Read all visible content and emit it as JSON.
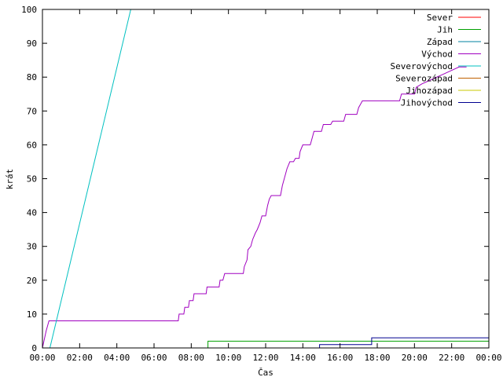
{
  "chart_data": {
    "type": "line",
    "title": "",
    "xlabel": "Čas",
    "ylabel": "krát",
    "xlim": [
      0,
      24
    ],
    "ylim": [
      0,
      100
    ],
    "x_unit": "hours",
    "grid": false,
    "legend_position": "top-right",
    "x_ticks": [
      "00:00",
      "02:00",
      "04:00",
      "06:00",
      "08:00",
      "10:00",
      "12:00",
      "14:00",
      "16:00",
      "18:00",
      "20:00",
      "22:00",
      "00:00"
    ],
    "y_ticks": [
      0,
      10,
      20,
      30,
      40,
      50,
      60,
      70,
      80,
      90,
      100
    ],
    "series": [
      {
        "name": "Sever",
        "color": "#ff0000",
        "step": true,
        "points": []
      },
      {
        "name": "Jih",
        "color": "#00a000",
        "step": true,
        "points": [
          [
            0,
            0
          ],
          [
            8.9,
            0
          ],
          [
            8.9,
            2
          ],
          [
            24,
            2
          ]
        ]
      },
      {
        "name": "Západ",
        "color": "#0080a0",
        "step": true,
        "points": []
      },
      {
        "name": "Východ",
        "color": "#a000c0",
        "step": false,
        "points": [
          [
            0.0,
            0
          ],
          [
            0.2,
            5
          ],
          [
            0.35,
            8
          ],
          [
            7.3,
            8
          ],
          [
            7.35,
            10
          ],
          [
            7.6,
            10
          ],
          [
            7.65,
            12
          ],
          [
            7.85,
            12
          ],
          [
            7.9,
            14
          ],
          [
            8.1,
            14
          ],
          [
            8.15,
            16
          ],
          [
            8.8,
            16
          ],
          [
            8.85,
            18
          ],
          [
            9.5,
            18
          ],
          [
            9.55,
            20
          ],
          [
            9.7,
            20
          ],
          [
            9.8,
            22
          ],
          [
            10.8,
            22
          ],
          [
            10.85,
            24
          ],
          [
            11.0,
            26
          ],
          [
            11.05,
            29
          ],
          [
            11.2,
            30
          ],
          [
            11.3,
            32
          ],
          [
            11.45,
            34
          ],
          [
            11.55,
            35
          ],
          [
            11.7,
            37
          ],
          [
            11.8,
            39
          ],
          [
            12.0,
            39
          ],
          [
            12.1,
            42
          ],
          [
            12.2,
            44
          ],
          [
            12.3,
            45
          ],
          [
            12.8,
            45
          ],
          [
            12.9,
            48
          ],
          [
            13.0,
            50
          ],
          [
            13.15,
            53
          ],
          [
            13.3,
            55
          ],
          [
            13.5,
            55
          ],
          [
            13.6,
            56
          ],
          [
            13.8,
            56
          ],
          [
            13.85,
            58
          ],
          [
            14.0,
            60
          ],
          [
            14.4,
            60
          ],
          [
            14.5,
            62
          ],
          [
            14.6,
            64
          ],
          [
            15.0,
            64
          ],
          [
            15.1,
            66
          ],
          [
            15.5,
            66
          ],
          [
            15.6,
            67
          ],
          [
            16.2,
            67
          ],
          [
            16.3,
            69
          ],
          [
            16.9,
            69
          ],
          [
            17.0,
            71
          ],
          [
            17.1,
            72
          ],
          [
            17.2,
            73
          ],
          [
            19.2,
            73
          ],
          [
            19.3,
            75
          ],
          [
            20.0,
            75
          ],
          [
            20.1,
            77
          ],
          [
            20.4,
            78
          ],
          [
            20.8,
            79
          ],
          [
            21.2,
            80
          ],
          [
            21.6,
            81
          ],
          [
            22.0,
            82
          ],
          [
            22.4,
            83
          ],
          [
            22.8,
            83
          ]
        ]
      },
      {
        "name": "Severovýchod",
        "color": "#00c0c0",
        "step": false,
        "points": [
          [
            0.4,
            0
          ],
          [
            4.75,
            100
          ]
        ]
      },
      {
        "name": "Severozápad",
        "color": "#c06000",
        "step": true,
        "points": []
      },
      {
        "name": "Jihozápad",
        "color": "#c8c800",
        "step": true,
        "points": []
      },
      {
        "name": "Jihovýchod",
        "color": "#000090",
        "step": true,
        "points": [
          [
            0,
            0
          ],
          [
            14.9,
            0
          ],
          [
            14.9,
            1
          ],
          [
            17.7,
            1
          ],
          [
            17.7,
            3
          ],
          [
            24,
            3
          ]
        ]
      }
    ]
  }
}
